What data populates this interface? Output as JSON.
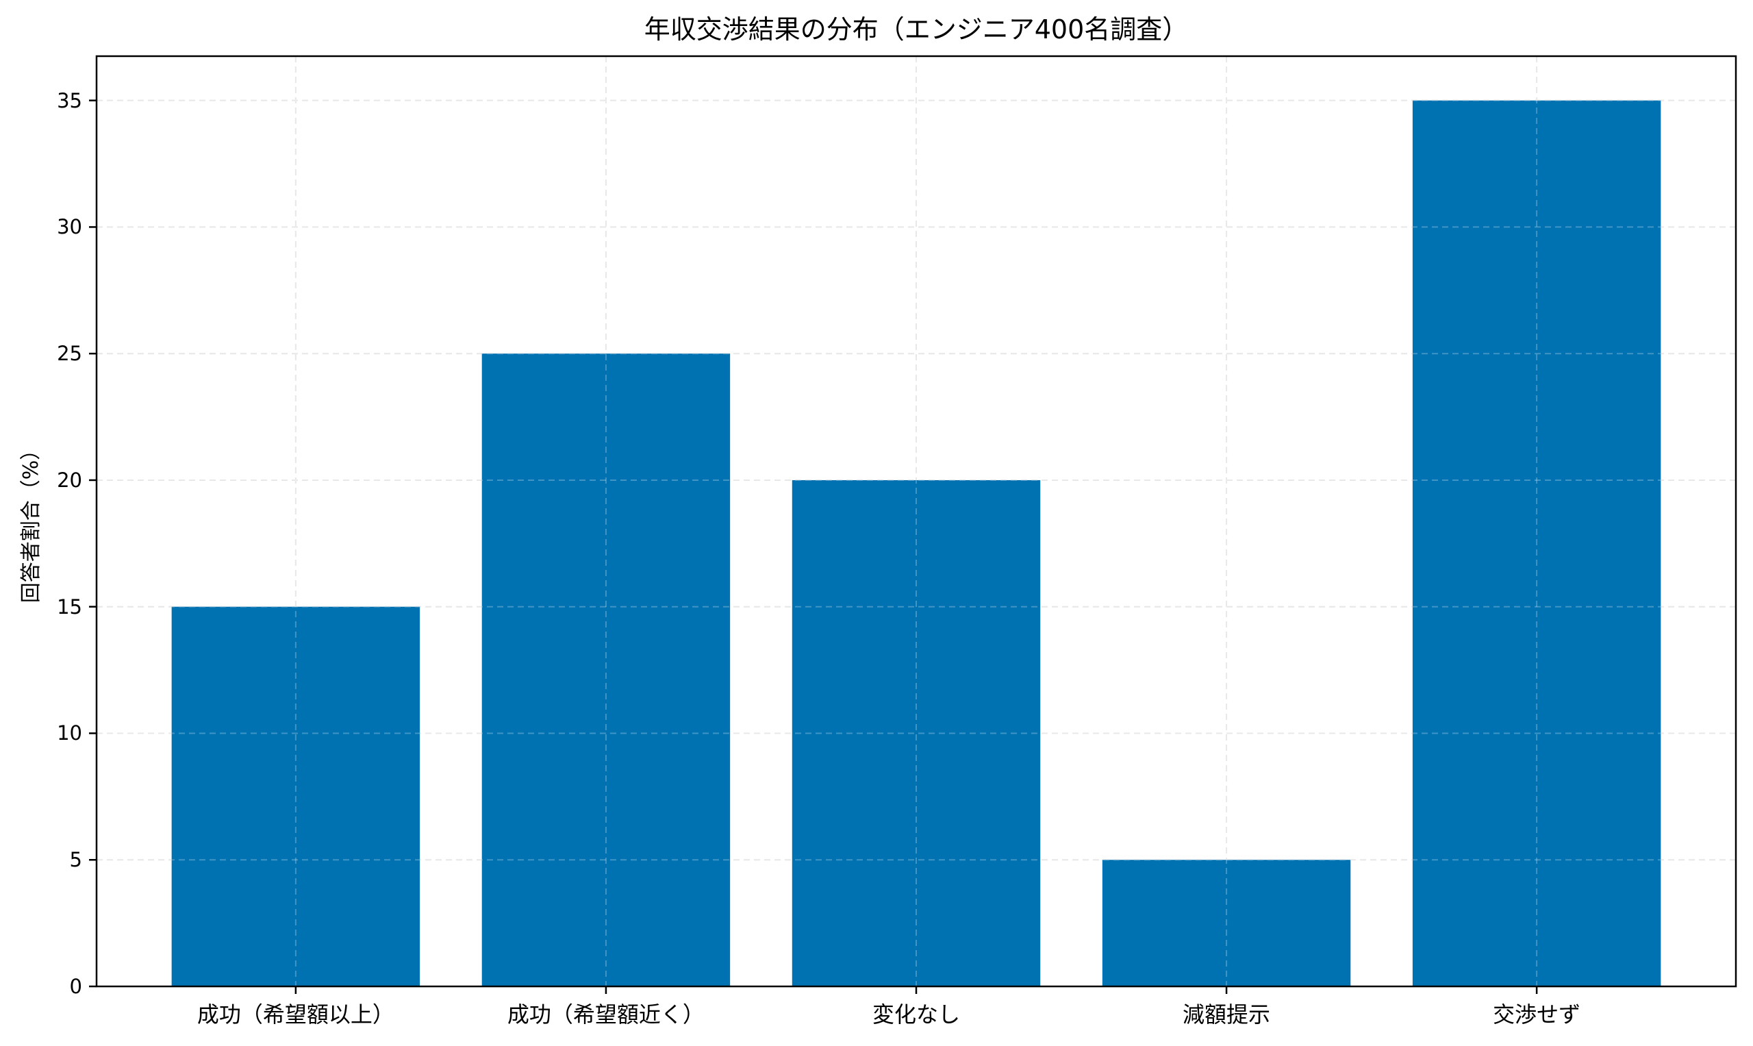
{
  "chart_data": {
    "type": "bar",
    "title": "年収交渉結果の分布（エンジニア400名調査）",
    "xlabel": "",
    "ylabel": "回答者割合（%）",
    "categories": [
      "成功（希望額以上）",
      "成功（希望額近く）",
      "変化なし",
      "減額提示",
      "交渉せず"
    ],
    "values": [
      15,
      25,
      20,
      5,
      35
    ],
    "ylim": [
      0,
      36.75
    ],
    "yticks": [
      0,
      5,
      10,
      15,
      20,
      25,
      30,
      35
    ],
    "grid": true,
    "grid_style": "dashed",
    "legend": null,
    "bar_color": "#0072B2"
  },
  "colors": {
    "bar": "#0072B2",
    "grid": "#e0e0e0",
    "axis": "#000000",
    "background": "#ffffff"
  }
}
